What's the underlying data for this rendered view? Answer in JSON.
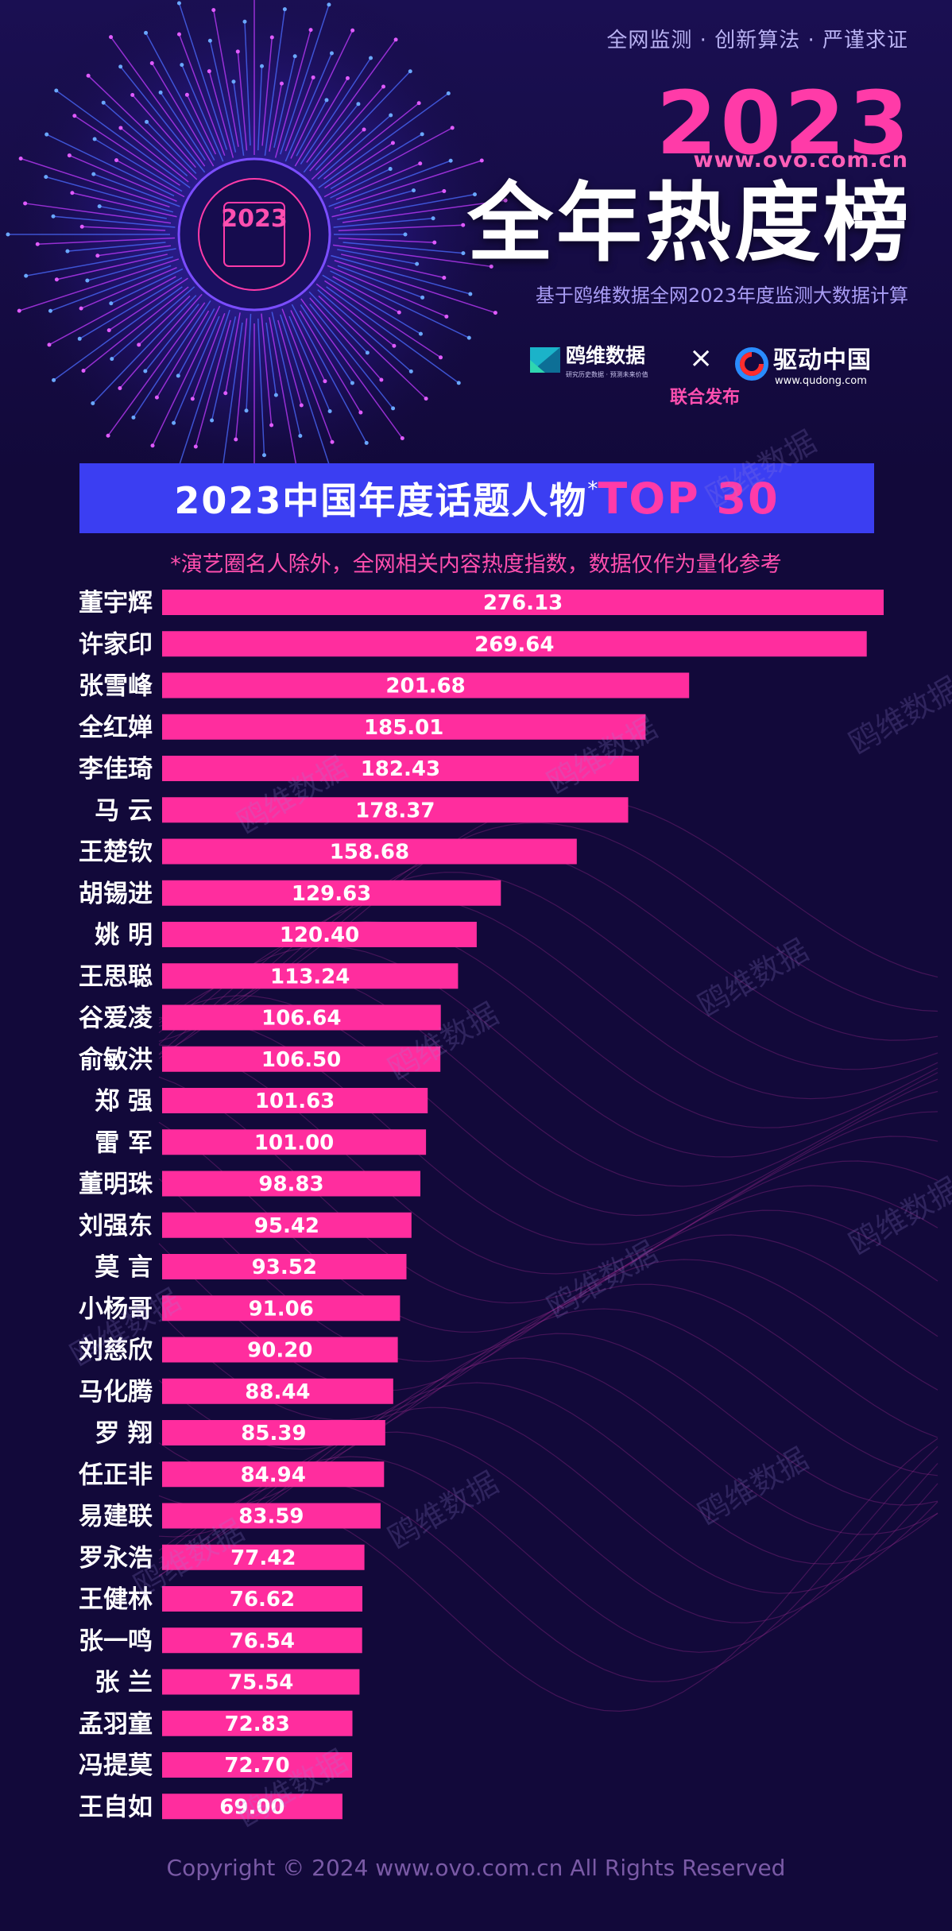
{
  "header": {
    "tagline": "全网监测 · 创新算法 · 严谨求证",
    "year": "2023",
    "url": "www.ovo.com.cn",
    "title": "全年热度榜",
    "subtitle": "基于鸥维数据全网2023年度监测大数据计算",
    "emblem_year": "2023"
  },
  "partners": {
    "logo1_name": "鸥维数据",
    "logo1_tagline": "研究历史数据 · 预测未来价值",
    "times": "×",
    "logo2_name": "驱动中国",
    "logo2_url": "www.qudong.com",
    "joint_release": "联合发布"
  },
  "banner": {
    "text": "2023中国年度话题人物",
    "star": "*",
    "highlight": "TOP 30"
  },
  "note": "*演艺圈名人除外，全网相关内容热度指数，数据仅作为量化参考",
  "watermark": "鸥维数据",
  "colors": {
    "background": "#12093a",
    "bar": "#ff2d9e",
    "banner": "#3b3ef2",
    "accent": "#ff3ba8"
  },
  "chart_data": {
    "type": "bar",
    "orientation": "horizontal",
    "categories": [
      "董宇辉",
      "许家印",
      "张雪峰",
      "全红婵",
      "李佳琦",
      "马 云",
      "王楚钦",
      "胡锡进",
      "姚 明",
      "王思聪",
      "谷爱凌",
      "俞敏洪",
      "郑 强",
      "雷 军",
      "董明珠",
      "刘强东",
      "莫 言",
      "小杨哥",
      "刘慈欣",
      "马化腾",
      "罗 翔",
      "任正非",
      "易建联",
      "罗永浩",
      "王健林",
      "张一鸣",
      "张 兰",
      "孟羽童",
      "冯提莫",
      "王自如"
    ],
    "values": [
      276.13,
      269.64,
      201.68,
      185.01,
      182.43,
      178.37,
      158.68,
      129.63,
      120.4,
      113.24,
      106.64,
      106.5,
      101.63,
      101.0,
      98.83,
      95.42,
      93.52,
      91.06,
      90.2,
      88.44,
      85.39,
      84.94,
      83.59,
      77.42,
      76.62,
      76.54,
      75.54,
      72.83,
      72.7,
      69.0
    ],
    "labels": [
      "276.13",
      "269.64",
      "201.68",
      "185.01",
      "182.43",
      "178.37",
      "158.68",
      "129.63",
      "120.40",
      "113.24",
      "106.64",
      "106.50",
      "101.63",
      "101.00",
      "98.83",
      "95.42",
      "93.52",
      "91.06",
      "90.20",
      "88.44",
      "85.39",
      "84.94",
      "83.59",
      "77.42",
      "76.62",
      "76.54",
      "75.54",
      "72.83",
      "72.70",
      "69.00"
    ],
    "xlim": [
      0,
      276.13
    ],
    "grid": false,
    "legend": "none"
  },
  "footer": {
    "copyright": "Copyright © 2024  www.ovo.com.cn All Rights Reserved"
  }
}
